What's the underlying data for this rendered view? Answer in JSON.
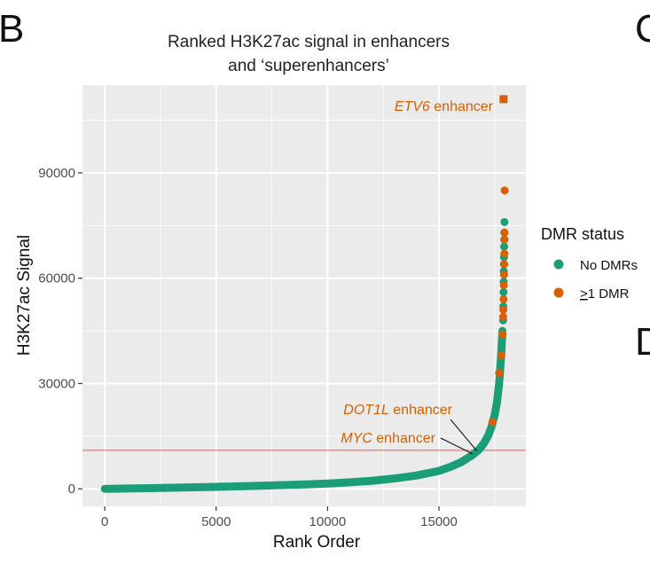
{
  "panel_labels": [
    "B",
    "C",
    "D"
  ],
  "colors": {
    "no_dmr": "#1b9e77",
    "dmr": "#d95f02",
    "threshold_line": "#e8908a",
    "panel_bg": "#ebebeb",
    "grid": "#ffffff"
  },
  "chart_data": {
    "type": "scatter",
    "title": [
      "Ranked H3K27ac signal in enhancers",
      "and ‘superenhancers’"
    ],
    "xlabel": "Rank Order",
    "ylabel": "H3K27ac Signal",
    "xlim": [
      -1000,
      18900
    ],
    "ylim": [
      -5000,
      115000
    ],
    "xticks": [
      0,
      5000,
      10000,
      15000
    ],
    "xtick_labels": [
      "0",
      "5000",
      "10000",
      "15000"
    ],
    "yticks": [
      0,
      30000,
      60000,
      90000
    ],
    "ytick_labels": [
      "0",
      "30000",
      "60000",
      "90000"
    ],
    "grid": true,
    "threshold_y": 11000,
    "legend": {
      "title": "DMR status",
      "position": "right",
      "entries": [
        {
          "label": "No DMRs",
          "series": "no_dmr"
        },
        {
          "label_underlined": ">",
          "label_rest": "1 DMR",
          "series": "dmr"
        }
      ]
    },
    "curve": {
      "description": "ranked enhancer signal",
      "x": [
        0,
        1000,
        2000,
        3000,
        4000,
        5000,
        6000,
        7000,
        8000,
        9000,
        10000,
        11000,
        12000,
        13000,
        14000,
        15000,
        15500,
        16000,
        16500,
        16800,
        17000,
        17200,
        17350,
        17500,
        17600,
        17700,
        17750,
        17800,
        17850
      ],
      "y": [
        0,
        80,
        180,
        300,
        430,
        570,
        720,
        880,
        1050,
        1250,
        1500,
        1850,
        2300,
        2950,
        3800,
        5100,
        6200,
        7600,
        9600,
        11200,
        12800,
        15000,
        17500,
        21000,
        24500,
        30000,
        34000,
        39000,
        45000
      ]
    },
    "series": [
      {
        "name": "no_dmr",
        "x": [
          17880,
          17890,
          17900,
          17905,
          17910,
          17915,
          17920,
          17925,
          17930,
          17935,
          17940
        ],
        "y": [
          48000,
          52000,
          56000,
          59000,
          62000,
          64000,
          66000,
          69000,
          71000,
          73000,
          76000
        ]
      },
      {
        "name": "dmr",
        "x": [
          17400,
          17700,
          17800,
          17850,
          17880,
          17890,
          17900,
          17910,
          17920,
          17930,
          17935,
          17940,
          17945,
          17950
        ],
        "y": [
          19000,
          33000,
          38000,
          44000,
          49000,
          51000,
          54000,
          58000,
          61000,
          64000,
          67000,
          71000,
          73000,
          85000
        ]
      }
    ],
    "highlight": {
      "x": 17900,
      "y": 111000,
      "shape": "square",
      "series": "dmr"
    },
    "annotations": [
      {
        "id": "etv6",
        "italic": "ETV6",
        "rest": " enhancer",
        "x": 17900,
        "y": 111000
      },
      {
        "id": "dot1l",
        "italic": "DOT1L",
        "rest": " enhancer",
        "x": 16700,
        "y": 10800
      },
      {
        "id": "myc",
        "italic": "MYC",
        "rest": " enhancer",
        "x": 16500,
        "y": 10000
      }
    ]
  }
}
